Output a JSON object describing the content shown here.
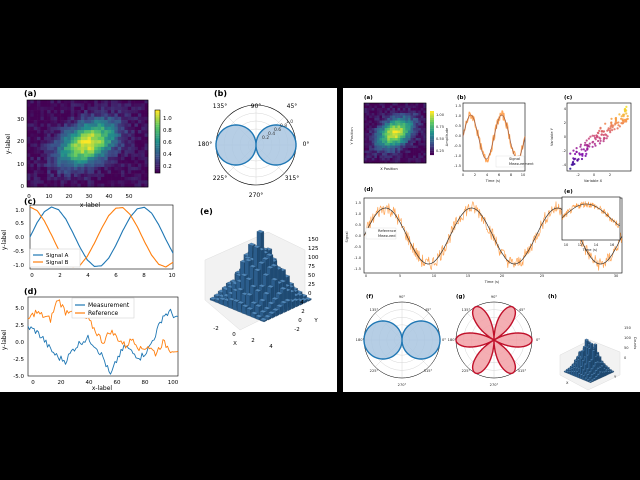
{
  "colors": {
    "blue": "#1f77b4",
    "orange": "#ff7f0e",
    "pie_fill": "#a9c6e1",
    "rose_fill": "#f2a0a6",
    "rose_edge": "#c0102a",
    "panel_bg": "#ffffff",
    "divider": "#000000"
  },
  "left_figure": {
    "panels": {
      "a": {
        "tag": "(a)",
        "xlabel": "x-label",
        "ylabel": "y-label",
        "xticks": [
          "0",
          "10",
          "20",
          "30",
          "40",
          "50"
        ],
        "yticks": [
          "0",
          "10",
          "20",
          "30"
        ],
        "colorbar_ticks": [
          "0.2",
          "0.4",
          "0.6",
          "0.8",
          "1.0"
        ]
      },
      "b": {
        "tag": "(b)",
        "angle_labels": [
          "90°",
          "45°",
          "0°",
          "315°",
          "270°",
          "225°",
          "180°",
          "135°"
        ],
        "radial_labels": [
          "0.2",
          "0.4",
          "0.6",
          "0.8",
          "1.0"
        ]
      },
      "c": {
        "tag": "(c)",
        "ylabel": "y-label",
        "xticks": [
          "0",
          "2",
          "4",
          "6",
          "8",
          "10"
        ],
        "yticks": [
          "1.0",
          "0.5",
          "0.0",
          "-0.5",
          "-1.0"
        ],
        "legend": [
          "Signal A",
          "Signal B"
        ]
      },
      "d": {
        "tag": "(d)",
        "xlabel": "x-label",
        "ylabel": "y-label",
        "xticks": [
          "0",
          "20",
          "40",
          "60",
          "80",
          "100"
        ],
        "yticks": [
          "5.0",
          "2.5",
          "0.0",
          "-2.5",
          "-5.0"
        ],
        "legend": [
          "Measurement",
          "Reference"
        ]
      },
      "e": {
        "tag": "(e)",
        "zticks": [
          "150",
          "125",
          "100",
          "75",
          "50",
          "25",
          "0"
        ],
        "xticks": [
          "-2",
          "0",
          "2",
          "4"
        ],
        "yticks": [
          "4",
          "2",
          "0",
          "-2"
        ],
        "xlabel": "X",
        "ylabel": "Y"
      }
    }
  },
  "right_figure": {
    "panels": {
      "a": {
        "tag": "(a)",
        "xlabel": "X Position",
        "ylabel": "Y Position",
        "colorbar_ticks": [
          "1.00",
          "0.75",
          "0.50",
          "0.25"
        ]
      },
      "b": {
        "tag": "(b)",
        "xlabel": "Time (s)",
        "ylabel": "Amplitude",
        "yticks": [
          "1.5",
          "1.0",
          "0.5",
          "0.0",
          "-0.5",
          "-1.0",
          "-1.5"
        ],
        "xticks": [
          "0",
          "2",
          "4",
          "6",
          "8",
          "10"
        ],
        "legend": [
          "Signal",
          "Measurement"
        ]
      },
      "c": {
        "tag": "(c)",
        "xlabel": "Variable X",
        "ylabel": "Variable Y",
        "xticks": [
          "-2",
          "0",
          "2"
        ],
        "yticks": [
          "4",
          "2",
          "0",
          "-2",
          "-4"
        ]
      },
      "d": {
        "tag": "(d)",
        "xlabel": "Time (s)",
        "ylabel": "Signal",
        "xticks": [
          "0",
          "5",
          "10",
          "15",
          "20",
          "25",
          "30"
        ],
        "yticks": [
          "1.5",
          "1.0",
          "0.5",
          "0.0",
          "-0.5",
          "-1.0",
          "-1.5"
        ],
        "legend": [
          "Reference",
          "Measured"
        ]
      },
      "e": {
        "tag": "(e)",
        "xlabel": "Time (s)",
        "xticks": [
          "10",
          "12",
          "14",
          "16"
        ]
      },
      "f": {
        "tag": "(f)",
        "angle_labels": [
          "90°",
          "45°",
          "0°",
          "315°",
          "270°",
          "225°",
          "180°",
          "135°"
        ]
      },
      "g": {
        "tag": "(g)",
        "angle_labels": [
          "90°",
          "45°",
          "0°",
          "315°",
          "270°",
          "225°",
          "180°",
          "135°"
        ]
      },
      "h": {
        "tag": "(h)",
        "zlabel": "Counts",
        "zticks": [
          "150",
          "100",
          "50",
          "0"
        ],
        "xlabel": "X",
        "ylabel": "Y"
      }
    }
  },
  "chart_data": [
    {
      "panel": "left-a",
      "type": "heatmap",
      "xlabel": "x-label",
      "ylabel": "y-label",
      "xlim": [
        0,
        60
      ],
      "ylim": [
        0,
        40
      ],
      "peak": {
        "x": 30,
        "y": 20
      },
      "clim": [
        0.1,
        1.15
      ]
    },
    {
      "panel": "left-b",
      "type": "line",
      "polar": true,
      "function": "|cos(theta)|",
      "rlim": [
        0,
        1.0
      ],
      "rticks": [
        0.2,
        0.4,
        0.6,
        0.8,
        1.0
      ]
    },
    {
      "panel": "left-c",
      "type": "line",
      "xlim": [
        0,
        10
      ],
      "ylim": [
        -1.0,
        1.0
      ],
      "x": [
        0,
        0.5,
        1,
        1.5,
        2,
        2.5,
        3,
        3.5,
        4,
        4.5,
        5,
        5.5,
        6,
        6.5,
        7,
        7.5,
        8,
        8.5,
        9,
        9.5,
        10
      ],
      "series": [
        {
          "name": "Signal A",
          "values": [
            0,
            0.48,
            0.84,
            1.0,
            0.91,
            0.6,
            0.14,
            -0.35,
            -0.76,
            -0.98,
            -0.96,
            -0.71,
            -0.28,
            0.22,
            0.66,
            0.94,
            0.99,
            0.8,
            0.41,
            -0.08,
            -0.54
          ]
        },
        {
          "name": "Signal B",
          "values": [
            1.0,
            0.88,
            0.54,
            0.07,
            -0.42,
            -0.8,
            -0.99,
            -0.94,
            -0.65,
            -0.21,
            0.28,
            0.71,
            0.96,
            0.98,
            0.75,
            0.35,
            -0.15,
            -0.6,
            -0.91,
            -1.0,
            -0.84
          ]
        }
      ]
    },
    {
      "panel": "left-d",
      "type": "line",
      "xlim": [
        0,
        100
      ],
      "ylim": [
        -5.5,
        5.0
      ],
      "x": [
        0,
        5,
        10,
        15,
        20,
        25,
        30,
        35,
        40,
        45,
        50,
        55,
        60,
        65,
        70,
        75,
        80,
        85,
        90,
        95,
        100
      ],
      "series": [
        {
          "name": "Measurement",
          "values": [
            1.0,
            0.5,
            -0.5,
            -2.0,
            -3.0,
            -3.5,
            -2.0,
            -1.0,
            -0.5,
            -1.5,
            -3.0,
            -5.5,
            -3.0,
            -1.5,
            -2.5,
            -3.0,
            -2.0,
            0.0,
            2.5,
            3.0,
            2.0
          ]
        },
        {
          "name": "Reference",
          "values": [
            2.0,
            3.0,
            2.5,
            2.0,
            4.8,
            3.0,
            3.5,
            2.5,
            2.0,
            0.5,
            -1.0,
            0.5,
            -0.5,
            -1.5,
            -0.5,
            -2.0,
            -1.5,
            -2.5,
            -1.0,
            -2.0,
            -2.0
          ]
        }
      ]
    },
    {
      "panel": "left-e",
      "type": "bar",
      "dimensions": 3,
      "zlim": [
        0,
        150
      ],
      "xlim": [
        -3,
        4
      ],
      "ylim": [
        -3,
        4
      ],
      "peak": {
        "x": 0,
        "y": 0,
        "z": 150
      }
    },
    {
      "panel": "right-a",
      "type": "heatmap",
      "xlabel": "X Position",
      "ylabel": "Y Position",
      "clim": [
        0.25,
        1.0
      ]
    },
    {
      "panel": "right-b",
      "type": "line",
      "xlabel": "Time (s)",
      "ylabel": "Amplitude",
      "xlim": [
        0,
        10
      ],
      "ylim": [
        -1.5,
        1.5
      ],
      "series": [
        {
          "name": "Signal",
          "function": "sin(2*pi*t/5)"
        },
        {
          "name": "Measurement",
          "function": "sin(2*pi*t/5) + noise"
        }
      ]
    },
    {
      "panel": "right-c",
      "type": "scatter",
      "xlabel": "Variable X",
      "ylabel": "Variable Y",
      "xlim": [
        -3,
        3
      ],
      "ylim": [
        -5,
        5
      ],
      "trend": "positive linear correlation"
    },
    {
      "panel": "right-d",
      "type": "line",
      "xlabel": "Time (s)",
      "ylabel": "Signal",
      "xlim": [
        0,
        30
      ],
      "ylim": [
        -1.5,
        1.5
      ],
      "series": [
        {
          "name": "Reference",
          "function": "sin(2*pi*t/10)"
        },
        {
          "name": "Measured",
          "function": "sin(2*pi*t/10) + noise"
        }
      ]
    },
    {
      "panel": "right-e",
      "type": "line",
      "xlabel": "Time (s)",
      "xlim": [
        10,
        16
      ],
      "inset_of": "right-d"
    },
    {
      "panel": "right-f",
      "type": "line",
      "polar": true,
      "function": "|cos(theta)|"
    },
    {
      "panel": "right-g",
      "type": "line",
      "polar": true,
      "function": "|cos(3*theta)|"
    },
    {
      "panel": "right-h",
      "type": "bar",
      "dimensions": 3,
      "zlabel": "Counts",
      "zlim": [
        0,
        150
      ]
    }
  ]
}
